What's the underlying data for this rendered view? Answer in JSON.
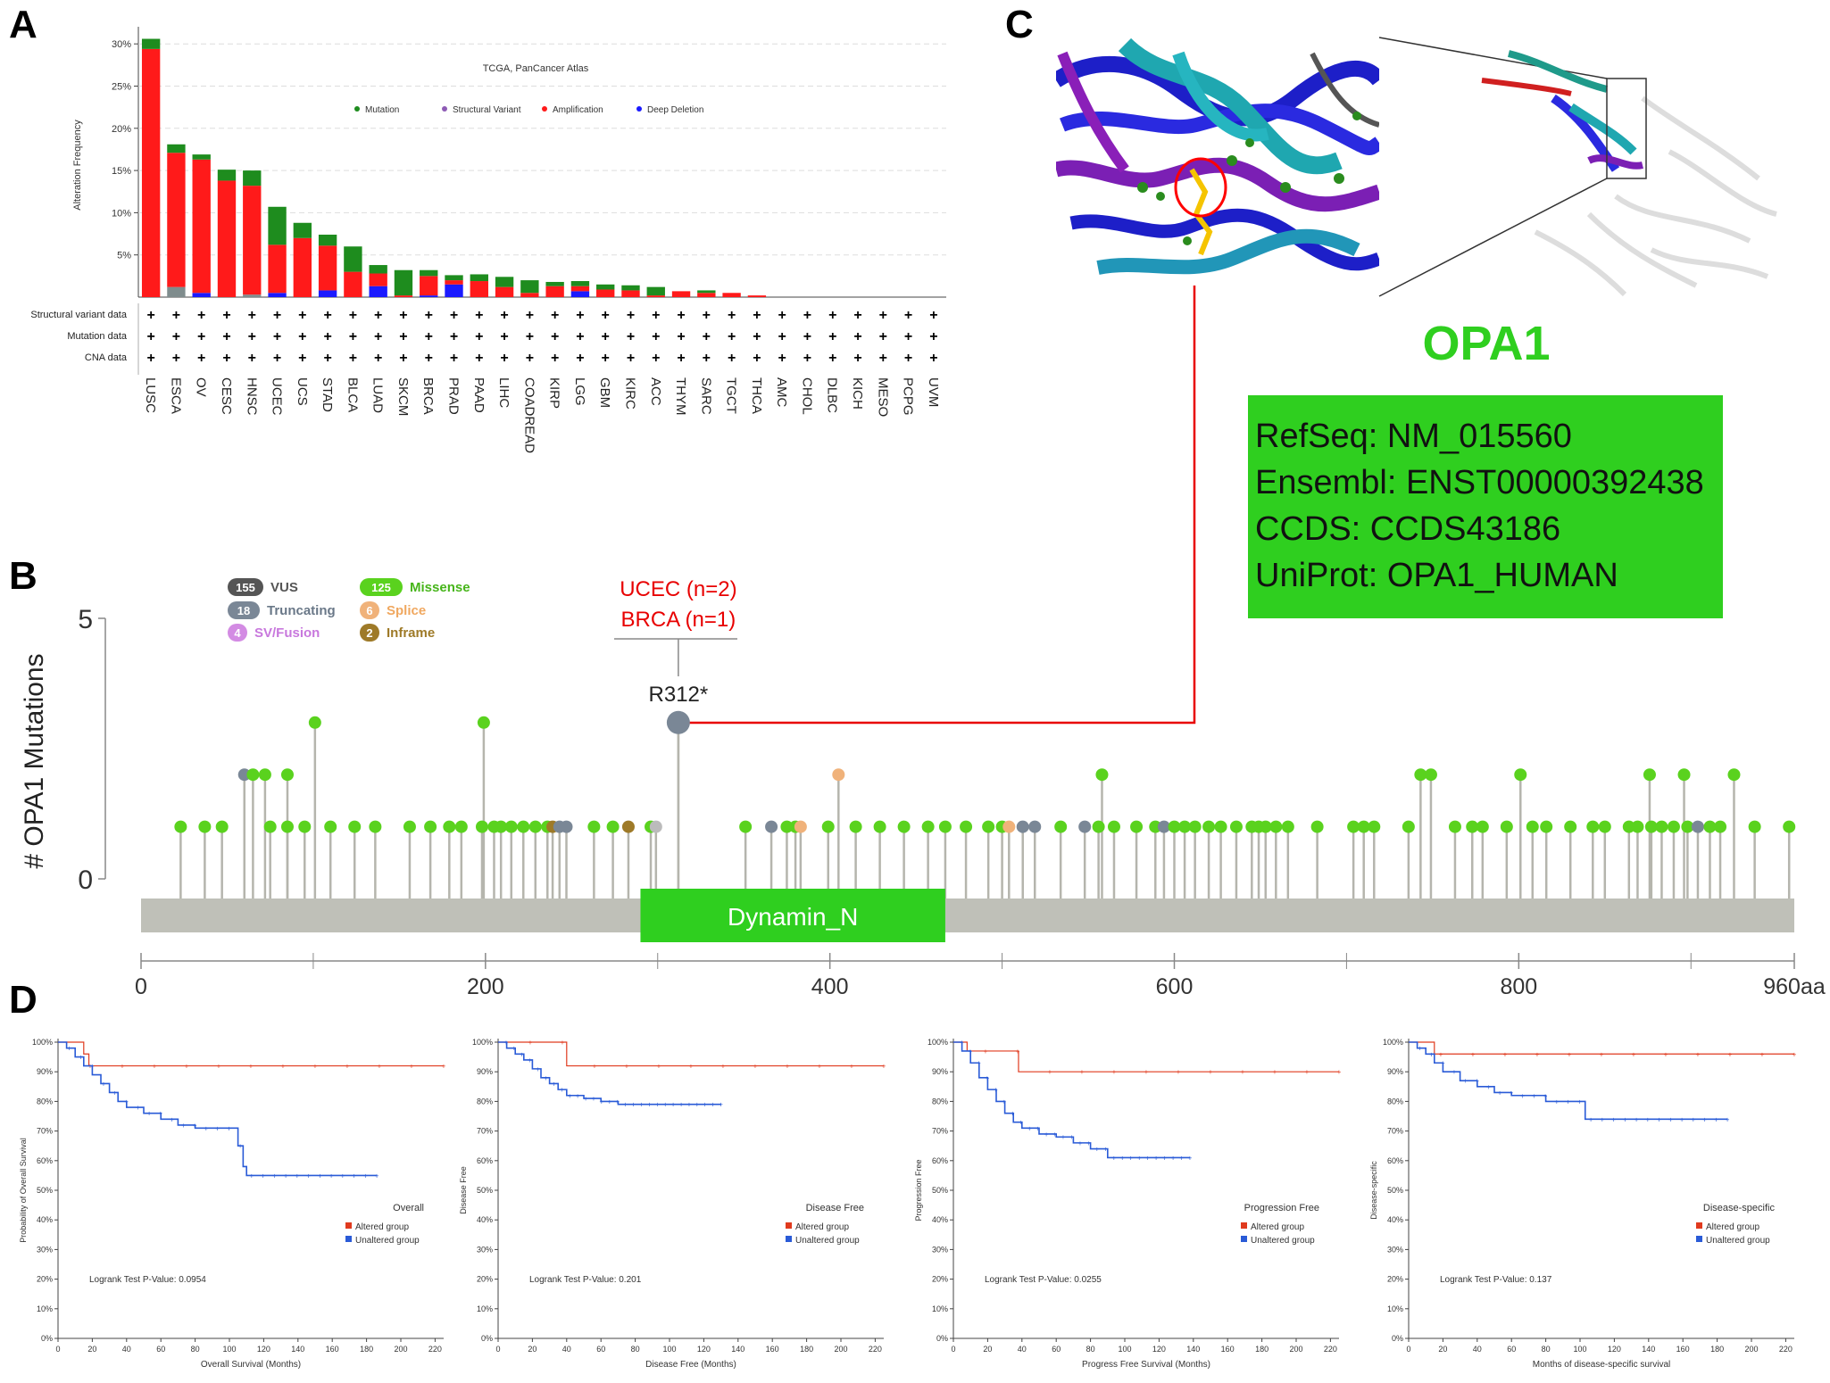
{
  "panels": {
    "a": "A",
    "b": "B",
    "c": "C",
    "d": "D"
  },
  "colors": {
    "mutation": "#1e8c1e",
    "structural_variant": "#8e5bb5",
    "amplification": "#ff1a1a",
    "deep_deletion": "#1a1aff",
    "grey_segment": "#7f8c8d",
    "missense": "#5ad21e",
    "truncating": "#7a8796",
    "splice": "#f0b27a",
    "inframe": "#9e7a28",
    "vus": "#555555",
    "sv_fusion": "#d38be3",
    "domain": "#2fcf1f",
    "altered": "#e03a1e",
    "unaltered": "#2a5bd7",
    "backbone": "#bfc0b8"
  },
  "panel_a": {
    "chart_data": {
      "type": "bar",
      "title": "TCGA, PanCancer Atlas",
      "ylabel": "Alteration Frequency",
      "yticks": [
        "5%",
        "10%",
        "15%",
        "20%",
        "25%",
        "30%"
      ],
      "ylim": [
        0,
        31.5
      ],
      "categories": [
        "LUSC",
        "ESCA",
        "OV",
        "CESC",
        "HNSC",
        "UCEC",
        "UCS",
        "STAD",
        "BLCA",
        "LUAD",
        "SKCM",
        "BRCA",
        "PRAD",
        "PAAD",
        "LIHC",
        "COADREAD",
        "KIRP",
        "LGG",
        "GBM",
        "KIRC",
        "ACC",
        "THYM",
        "SARC",
        "TGCT",
        "THCA",
        "AMC",
        "CHOL",
        "DLBC",
        "KICH",
        "MESO",
        "PCPG",
        "UVM"
      ],
      "legend": [
        "Mutation",
        "Structural Variant",
        "Amplification",
        "Deep Deletion"
      ],
      "series": [
        {
          "name": "Deep Deletion",
          "values": [
            0,
            0,
            0.5,
            0,
            0,
            0.5,
            0,
            0.8,
            0,
            1.3,
            0,
            0.2,
            1.5,
            0,
            0,
            0,
            0,
            0.7,
            0,
            0,
            0,
            0,
            0,
            0,
            0,
            0,
            0,
            0,
            0,
            0,
            0,
            0
          ]
        },
        {
          "name": "Structural Variant",
          "values": [
            0,
            1.2,
            0,
            0,
            0.3,
            0,
            0,
            0,
            0,
            0,
            0,
            0,
            0,
            0,
            0,
            0,
            0,
            0,
            0,
            0,
            0,
            0,
            0,
            0,
            0,
            0,
            0,
            0,
            0,
            0,
            0,
            0
          ]
        },
        {
          "name": "Amplification",
          "values": [
            29.4,
            15.9,
            15.8,
            13.8,
            12.9,
            5.7,
            7.0,
            5.3,
            3.0,
            1.5,
            0.2,
            2.3,
            0.5,
            1.9,
            1.2,
            0.5,
            1.3,
            0.6,
            0.9,
            0.8,
            0.2,
            0.7,
            0.5,
            0.5,
            0.2,
            0,
            0,
            0,
            0,
            0,
            0,
            0
          ]
        },
        {
          "name": "Mutation",
          "values": [
            1.2,
            1.0,
            0.6,
            1.3,
            1.8,
            4.5,
            1.8,
            1.3,
            3.0,
            1.0,
            3.0,
            0.7,
            0.6,
            0.8,
            1.2,
            1.5,
            0.5,
            0.6,
            0.6,
            0.6,
            1.0,
            0,
            0.3,
            0,
            0,
            0,
            0,
            0,
            0,
            0,
            0,
            0
          ]
        }
      ],
      "row_labels": [
        "Structural variant data",
        "Mutation data",
        "CNA data"
      ],
      "row_marker": "+"
    }
  },
  "panel_b": {
    "chart_data": {
      "type": "lollipop",
      "ylabel": "# OPA1 Mutations",
      "yticks": [
        "0",
        "5"
      ],
      "ylim": [
        0,
        5
      ],
      "xlim": [
        0,
        960
      ],
      "xticks": [
        "0",
        "200",
        "400",
        "600",
        "800",
        "960aa"
      ],
      "domain": {
        "name": "Dynamin_N",
        "start": 290,
        "end": 467
      },
      "highlight": {
        "label": "R312*",
        "position": 312,
        "count": 3,
        "type": "truncating",
        "annotation": [
          "UCEC (n=2)",
          "BRCA (n=1)"
        ]
      },
      "legend": [
        {
          "count": "155",
          "label": "VUS"
        },
        {
          "count": "18",
          "label": "Truncating"
        },
        {
          "count": "4",
          "label": "SV/Fusion"
        },
        {
          "count": "125",
          "label": "Missense"
        },
        {
          "count": "6",
          "label": "Splice"
        },
        {
          "count": "2",
          "label": "Inframe"
        }
      ],
      "points": [
        [
          23,
          1,
          "m"
        ],
        [
          37,
          1,
          "m"
        ],
        [
          47,
          1,
          "m"
        ],
        [
          60,
          2,
          "t"
        ],
        [
          65,
          2,
          "m"
        ],
        [
          72,
          2,
          "m"
        ],
        [
          75,
          1,
          "m"
        ],
        [
          85,
          2,
          "m"
        ],
        [
          85,
          1,
          "m"
        ],
        [
          95,
          1,
          "m"
        ],
        [
          101,
          3,
          "m"
        ],
        [
          110,
          1,
          "m"
        ],
        [
          124,
          1,
          "m"
        ],
        [
          136,
          1,
          "m"
        ],
        [
          156,
          1,
          "m"
        ],
        [
          168,
          1,
          "m"
        ],
        [
          179,
          1,
          "m"
        ],
        [
          186,
          1,
          "m"
        ],
        [
          199,
          3,
          "m"
        ],
        [
          198,
          1,
          "m"
        ],
        [
          205,
          1,
          "m"
        ],
        [
          209,
          1,
          "m"
        ],
        [
          215,
          1,
          "m"
        ],
        [
          222,
          1,
          "m"
        ],
        [
          229,
          1,
          "m"
        ],
        [
          236,
          1,
          "m"
        ],
        [
          239,
          1,
          "i"
        ],
        [
          243,
          1,
          "t"
        ],
        [
          247,
          1,
          "t"
        ],
        [
          263,
          1,
          "m"
        ],
        [
          274,
          1,
          "m"
        ],
        [
          283,
          1,
          "i"
        ],
        [
          296,
          1,
          "m"
        ],
        [
          299,
          1,
          "v"
        ],
        [
          312,
          3,
          "t"
        ],
        [
          351,
          1,
          "m"
        ],
        [
          366,
          1,
          "t"
        ],
        [
          375,
          1,
          "m"
        ],
        [
          380,
          1,
          "m"
        ],
        [
          383,
          1,
          "s"
        ],
        [
          399,
          1,
          "m"
        ],
        [
          405,
          2,
          "s"
        ],
        [
          415,
          1,
          "m"
        ],
        [
          429,
          1,
          "m"
        ],
        [
          443,
          1,
          "m"
        ],
        [
          457,
          1,
          "m"
        ],
        [
          467,
          1,
          "m"
        ],
        [
          479,
          1,
          "m"
        ],
        [
          492,
          1,
          "m"
        ],
        [
          500,
          1,
          "m"
        ],
        [
          504,
          1,
          "s"
        ],
        [
          512,
          1,
          "t"
        ],
        [
          519,
          1,
          "t"
        ],
        [
          534,
          1,
          "m"
        ],
        [
          548,
          1,
          "t"
        ],
        [
          556,
          1,
          "m"
        ],
        [
          558,
          2,
          "m"
        ],
        [
          565,
          1,
          "m"
        ],
        [
          578,
          1,
          "m"
        ],
        [
          589,
          1,
          "m"
        ],
        [
          594,
          1,
          "t"
        ],
        [
          600,
          1,
          "m"
        ],
        [
          606,
          1,
          "m"
        ],
        [
          612,
          1,
          "m"
        ],
        [
          620,
          1,
          "m"
        ],
        [
          627,
          1,
          "m"
        ],
        [
          636,
          1,
          "m"
        ],
        [
          645,
          1,
          "m"
        ],
        [
          649,
          1,
          "m"
        ],
        [
          653,
          1,
          "m"
        ],
        [
          659,
          1,
          "m"
        ],
        [
          666,
          1,
          "m"
        ],
        [
          683,
          1,
          "m"
        ],
        [
          704,
          1,
          "m"
        ],
        [
          710,
          1,
          "m"
        ],
        [
          716,
          1,
          "m"
        ],
        [
          736,
          1,
          "m"
        ],
        [
          743,
          2,
          "m"
        ],
        [
          749,
          2,
          "m"
        ],
        [
          763,
          1,
          "m"
        ],
        [
          773,
          1,
          "m"
        ],
        [
          779,
          1,
          "m"
        ],
        [
          793,
          1,
          "m"
        ],
        [
          801,
          2,
          "m"
        ],
        [
          808,
          1,
          "m"
        ],
        [
          816,
          1,
          "m"
        ],
        [
          830,
          1,
          "m"
        ],
        [
          843,
          1,
          "m"
        ],
        [
          850,
          1,
          "m"
        ],
        [
          864,
          1,
          "m"
        ],
        [
          869,
          1,
          "m"
        ],
        [
          876,
          2,
          "m"
        ],
        [
          877,
          1,
          "m"
        ],
        [
          883,
          1,
          "m"
        ],
        [
          890,
          1,
          "m"
        ],
        [
          896,
          2,
          "m"
        ],
        [
          898,
          1,
          "m"
        ],
        [
          904,
          1,
          "t"
        ],
        [
          911,
          1,
          "m"
        ],
        [
          917,
          1,
          "m"
        ],
        [
          925,
          2,
          "m"
        ],
        [
          937,
          1,
          "m"
        ],
        [
          957,
          1,
          "m"
        ]
      ]
    }
  },
  "panel_c": {
    "gene": "OPA1",
    "refseq": "RefSeq: NM_015560",
    "ensembl": "Ensembl: ENST00000392438",
    "ccds": "CCDS: CCDS43186",
    "uniprot": "UniProt: OPA1_HUMAN"
  },
  "panel_d": {
    "yticks": [
      "0%",
      "10%",
      "20%",
      "30%",
      "40%",
      "50%",
      "60%",
      "70%",
      "80%",
      "90%",
      "100%"
    ],
    "xticks": [
      "0",
      "20",
      "40",
      "60",
      "80",
      "100",
      "120",
      "140",
      "160",
      "180",
      "200",
      "220"
    ],
    "legend_items": [
      "Altered group",
      "Unaltered group"
    ],
    "charts": [
      {
        "type": "line",
        "title": "Overall",
        "ylabel": "Probability of Overall Survival",
        "xlabel": "Overall Survival (Months)",
        "pvalue": "Logrank Test P-Value: 0.0954",
        "xlim": [
          0,
          225
        ],
        "ylim": [
          0,
          100
        ],
        "series": [
          {
            "name": "Altered group",
            "x": [
              0,
              12,
              15,
              18,
              225
            ],
            "y": [
              100,
              100,
              96,
              92,
              92
            ]
          },
          {
            "name": "Unaltered group",
            "x": [
              0,
              5,
              10,
              15,
              20,
              25,
              30,
              35,
              40,
              50,
              60,
              70,
              80,
              90,
              100,
              105,
              108,
              110,
              120,
              140,
              160,
              186
            ],
            "y": [
              100,
              98,
              95,
              92,
              89,
              86,
              83,
              80,
              78,
              76,
              74,
              72,
              71,
              71,
              71,
              65,
              58,
              55,
              55,
              55,
              55,
              55
            ]
          }
        ]
      },
      {
        "type": "line",
        "title": "Disease Free",
        "ylabel": "Disease Free",
        "xlabel": "Disease Free (Months)",
        "pvalue": "Logrank Test P-Value: 0.201",
        "xlim": [
          0,
          225
        ],
        "ylim": [
          0,
          100
        ],
        "series": [
          {
            "name": "Altered group",
            "x": [
              0,
              38,
              40,
              225
            ],
            "y": [
              100,
              100,
              92,
              92
            ]
          },
          {
            "name": "Unaltered group",
            "x": [
              0,
              5,
              10,
              15,
              20,
              25,
              30,
              35,
              40,
              50,
              60,
              70,
              80,
              100,
              130
            ],
            "y": [
              100,
              98,
              96,
              94,
              91,
              88,
              86,
              84,
              82,
              81,
              80,
              79,
              79,
              79,
              79
            ]
          }
        ]
      },
      {
        "type": "line",
        "title": "Progression Free",
        "ylabel": "Progression Free",
        "xlabel": "Progress Free Survival (Months)",
        "pvalue": "Logrank Test P-Value: 0.0255",
        "xlim": [
          0,
          225
        ],
        "ylim": [
          0,
          100
        ],
        "series": [
          {
            "name": "Altered group",
            "x": [
              0,
              8,
              36,
              38,
              225
            ],
            "y": [
              100,
              97,
              97,
              90,
              90
            ]
          },
          {
            "name": "Unaltered group",
            "x": [
              0,
              5,
              10,
              15,
              20,
              25,
              30,
              35,
              40,
              50,
              60,
              70,
              80,
              90,
              100,
              138
            ],
            "y": [
              100,
              97,
              93,
              88,
              84,
              80,
              76,
              73,
              71,
              69,
              68,
              66,
              64,
              61,
              61,
              61
            ]
          }
        ]
      },
      {
        "type": "line",
        "title": "Disease-specific",
        "ylabel": "Disease-specific",
        "xlabel": "Months of disease-specific survival",
        "pvalue": "Logrank Test P-Value: 0.137",
        "xlim": [
          0,
          225
        ],
        "ylim": [
          0,
          100
        ],
        "series": [
          {
            "name": "Altered group",
            "x": [
              0,
              12,
              15,
              225
            ],
            "y": [
              100,
              100,
              96,
              96
            ]
          },
          {
            "name": "Unaltered group",
            "x": [
              0,
              5,
              10,
              15,
              20,
              30,
              40,
              50,
              60,
              80,
              100,
              103,
              120,
              186
            ],
            "y": [
              100,
              98,
              96,
              93,
              90,
              87,
              85,
              83,
              82,
              80,
              80,
              74,
              74,
              74
            ]
          }
        ]
      }
    ]
  }
}
